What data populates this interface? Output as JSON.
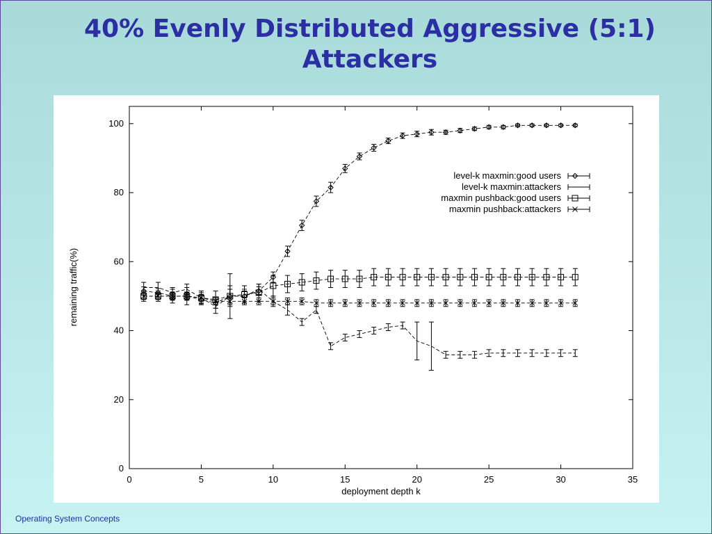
{
  "slide": {
    "title_line1": "40% Evenly Distributed Aggressive (5:1)",
    "title_line2": "Attackers",
    "footer": "Operating System Concepts"
  },
  "chart_data": {
    "type": "line",
    "title": "40% Evenly Distributed Aggressive (5:1) Attackers",
    "xlabel": "deployment depth k",
    "ylabel": "remaining traffic(%)",
    "xlim": [
      0,
      35
    ],
    "ylim": [
      0,
      105
    ],
    "xticks": [
      0,
      5,
      10,
      15,
      20,
      25,
      30,
      35
    ],
    "yticks": [
      0,
      20,
      40,
      60,
      80,
      100
    ],
    "grid": false,
    "legend_position": "upper-right",
    "x": [
      1,
      2,
      3,
      4,
      5,
      6,
      7,
      8,
      9,
      10,
      11,
      12,
      13,
      14,
      15,
      16,
      17,
      18,
      19,
      20,
      21,
      22,
      23,
      24,
      25,
      26,
      27,
      28,
      29,
      30,
      31
    ],
    "series": [
      {
        "name": "level-k maxmin:good users",
        "marker": "diamond",
        "values": [
          51.5,
          51,
          50,
          50,
          49,
          48,
          50,
          50,
          51.5,
          55.5,
          63,
          70.5,
          77.5,
          81.5,
          87,
          90.5,
          93,
          95,
          96.5,
          97,
          97.5,
          97.5,
          98,
          98.5,
          99,
          99,
          99.5,
          99.5,
          99.5,
          99.5,
          99.5
        ],
        "errors": [
          1.2,
          1.2,
          1.2,
          1.2,
          1.2,
          1.5,
          2.0,
          1.5,
          1.2,
          1.5,
          1.5,
          1.5,
          1.5,
          1.5,
          1.2,
          1.0,
          1.0,
          0.8,
          0.8,
          0.8,
          0.8,
          0.6,
          0.6,
          0.5,
          0.5,
          0.5,
          0.4,
          0.4,
          0.4,
          0.4,
          0.4
        ]
      },
      {
        "name": "level-k maxmin:attackers",
        "marker": "none",
        "values": [
          52.5,
          52.5,
          51,
          52,
          49.5,
          47,
          50,
          50,
          52,
          48.5,
          46,
          42.5,
          46,
          35.5,
          38,
          39,
          40,
          41,
          41.5,
          37,
          35.5,
          33,
          33,
          33,
          33.5,
          33.5,
          33.5,
          33.5,
          33.5,
          33.5,
          33.5
        ],
        "errors": [
          1.5,
          1.5,
          1.5,
          1.5,
          1.5,
          2.0,
          6.5,
          2.0,
          1.5,
          1.5,
          1.5,
          1.0,
          1.0,
          1.0,
          1.0,
          1.0,
          1.0,
          1.0,
          1.0,
          5.5,
          7.0,
          1.0,
          1.0,
          1.0,
          1.0,
          1.0,
          1.0,
          1.0,
          1.0,
          1.0,
          1.0
        ]
      },
      {
        "name": "maxmin pushback:good users",
        "marker": "square",
        "values": [
          50,
          50,
          50,
          50,
          49.5,
          49,
          50,
          50.5,
          51,
          53,
          53.5,
          54,
          54.5,
          55,
          55,
          55,
          55.5,
          55.5,
          55.5,
          55.5,
          55.5,
          55.5,
          55.5,
          55.5,
          55.5,
          55.5,
          55.5,
          55.5,
          55.5,
          55.5,
          55.5
        ],
        "errors": [
          1.5,
          1.5,
          2.0,
          2.5,
          2.0,
          2.5,
          3.0,
          2.5,
          2.5,
          3.0,
          2.5,
          2.5,
          2.5,
          2.5,
          2.5,
          2.5,
          2.5,
          2.5,
          2.5,
          2.5,
          2.5,
          2.5,
          2.5,
          2.5,
          2.5,
          2.5,
          2.5,
          2.5,
          2.5,
          2.5,
          2.5
        ]
      },
      {
        "name": "maxmin pushback:attackers",
        "marker": "x",
        "values": [
          50,
          50,
          50,
          50,
          49.5,
          48.5,
          48.5,
          48.5,
          48.5,
          48.5,
          48.5,
          48.5,
          48,
          48,
          48,
          48,
          48,
          48,
          48,
          48,
          48,
          48,
          48,
          48,
          48,
          48,
          48,
          48,
          48,
          48,
          48
        ],
        "errors": [
          1.0,
          1.0,
          1.0,
          1.0,
          1.0,
          1.0,
          1.0,
          1.0,
          1.0,
          1.0,
          1.0,
          1.0,
          1.0,
          1.0,
          1.0,
          1.0,
          1.0,
          1.0,
          1.0,
          1.0,
          1.0,
          1.0,
          1.0,
          1.0,
          1.0,
          1.0,
          1.0,
          1.0,
          1.0,
          1.0,
          1.0
        ]
      }
    ]
  }
}
